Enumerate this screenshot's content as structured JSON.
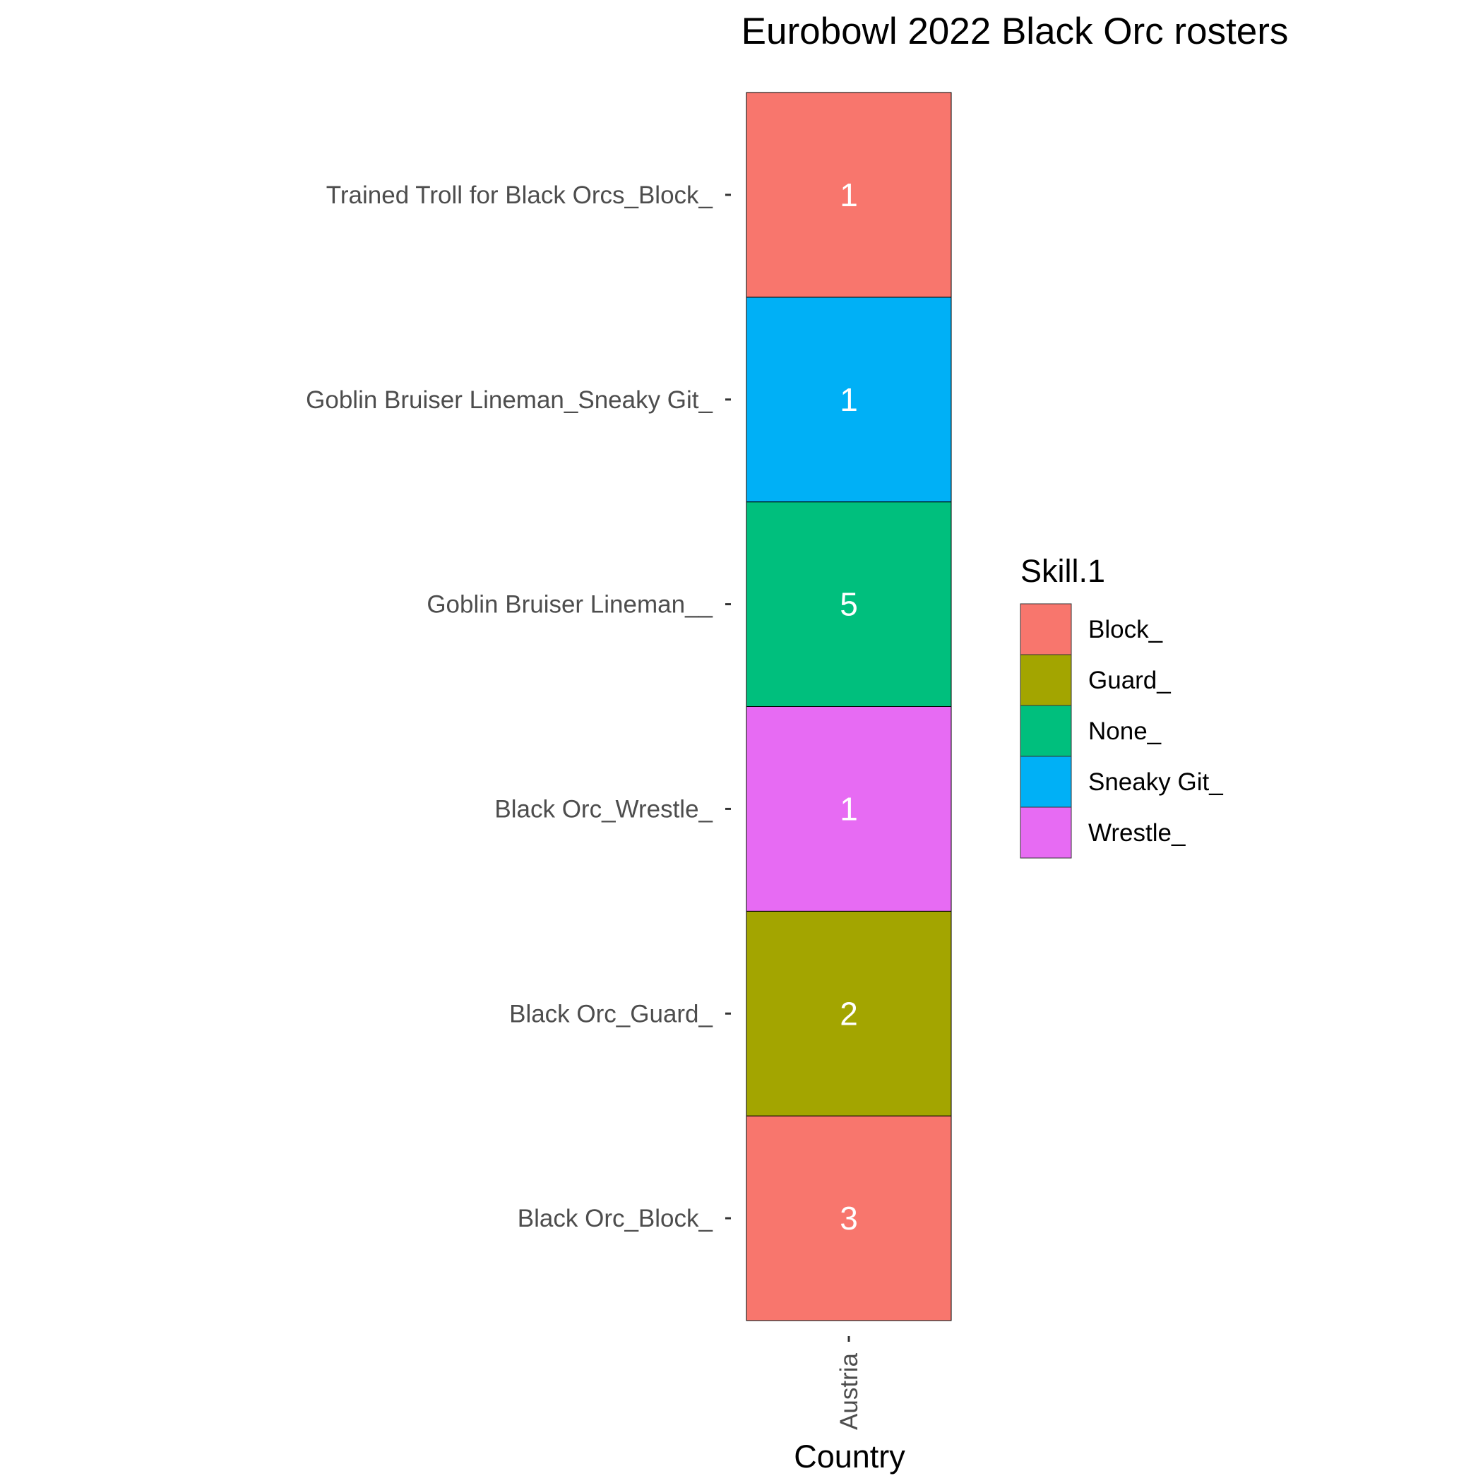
{
  "chart_data": {
    "type": "heatmap",
    "title": "Eurobowl 2022 Black Orc rosters",
    "xlabel": "Country",
    "ylabel": "",
    "x_categories": [
      "Austria"
    ],
    "y_categories": [
      "Black Orc_Block_",
      "Black Orc_Guard_",
      "Black Orc_Wrestle_",
      "Goblin Bruiser Lineman__",
      "Goblin Bruiser Lineman_Sneaky Git_",
      "Trained Troll for Black Orcs_Block_"
    ],
    "cells": [
      {
        "x": "Austria",
        "y": "Black Orc_Block_",
        "value": 3,
        "fill": "Block_"
      },
      {
        "x": "Austria",
        "y": "Black Orc_Guard_",
        "value": 2,
        "fill": "Guard_"
      },
      {
        "x": "Austria",
        "y": "Black Orc_Wrestle_",
        "value": 1,
        "fill": "Wrestle_"
      },
      {
        "x": "Austria",
        "y": "Goblin Bruiser Lineman__",
        "value": 5,
        "fill": "None_"
      },
      {
        "x": "Austria",
        "y": "Goblin Bruiser Lineman_Sneaky Git_",
        "value": 1,
        "fill": "Sneaky Git_"
      },
      {
        "x": "Austria",
        "y": "Trained Troll for Black Orcs_Block_",
        "value": 1,
        "fill": "Block_"
      }
    ],
    "legend": {
      "title": "Skill.1",
      "position": "right",
      "items": [
        {
          "label": "Block_",
          "color": "#F8766D"
        },
        {
          "label": "Guard_",
          "color": "#A3A500"
        },
        {
          "label": "None_",
          "color": "#00BF7D"
        },
        {
          "label": "Sneaky Git_",
          "color": "#00B0F6"
        },
        {
          "label": "Wrestle_",
          "color": "#E76BF3"
        }
      ]
    },
    "grid": false
  }
}
